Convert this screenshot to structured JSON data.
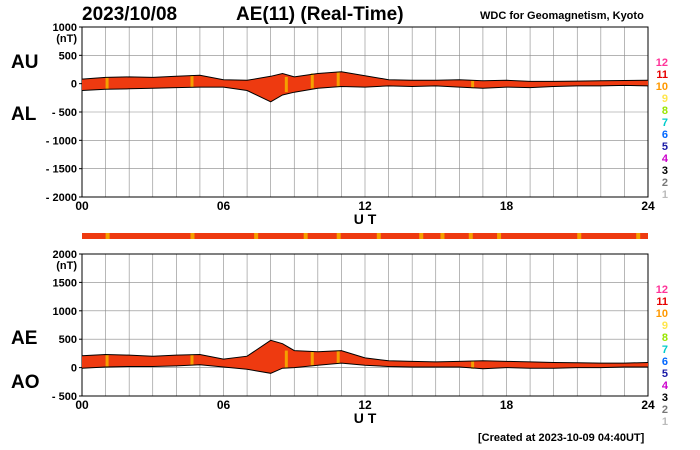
{
  "header": {
    "date": "2023/10/08",
    "title": "AE(11) (Real-Time)",
    "source": "WDC for Geomagnetism, Kyoto"
  },
  "footer": {
    "created": "[Created at 2023-10-09 04:40UT]"
  },
  "legend": {
    "items": [
      {
        "label": "12",
        "color": "#ff3399"
      },
      {
        "label": "11",
        "color": "#e60000"
      },
      {
        "label": "10",
        "color": "#ff9900"
      },
      {
        "label": "9",
        "color": "#ffe64d"
      },
      {
        "label": "8",
        "color": "#99e600"
      },
      {
        "label": "7",
        "color": "#00cccc"
      },
      {
        "label": "6",
        "color": "#0066ff"
      },
      {
        "label": "5",
        "color": "#1a1aa6"
      },
      {
        "label": "4",
        "color": "#cc00cc"
      },
      {
        "label": "3",
        "color": "#000000"
      },
      {
        "label": "2",
        "color": "#777777"
      },
      {
        "label": "1",
        "color": "#bbbbbb"
      }
    ]
  },
  "colors": {
    "fill_main": "#ee3a10",
    "fill_alt": "#f5a000",
    "outline": "#000000",
    "grid": "#888888"
  },
  "chart_data": [
    {
      "type": "area",
      "panel": "AU/AL",
      "series_labels": [
        "AU",
        "AL"
      ],
      "x": [
        0,
        1,
        2,
        3,
        4,
        5,
        6,
        7,
        8,
        8.5,
        9,
        10,
        11,
        12,
        13,
        14,
        15,
        16,
        17,
        18,
        19,
        20,
        21,
        22,
        23,
        24
      ],
      "series": [
        {
          "name": "AU",
          "values": [
            80,
            110,
            120,
            110,
            130,
            150,
            70,
            60,
            130,
            180,
            120,
            180,
            210,
            140,
            70,
            60,
            60,
            70,
            50,
            60,
            40,
            40,
            45,
            50,
            55,
            60
          ]
        },
        {
          "name": "AL",
          "values": [
            -120,
            -100,
            -90,
            -80,
            -70,
            -60,
            -60,
            -120,
            -320,
            -200,
            -150,
            -80,
            -50,
            -60,
            -40,
            -50,
            -40,
            -60,
            -80,
            -60,
            -70,
            -50,
            -40,
            -40,
            -30,
            -40
          ]
        }
      ],
      "xlabel": "U T",
      "xticks": [
        "00",
        "06",
        "12",
        "18",
        "24"
      ],
      "ylabel": "(nT)",
      "yticks": [
        "1000",
        "500",
        "0",
        "- 500",
        "- 1000",
        "- 1500",
        "- 2000"
      ],
      "xlim": [
        0,
        24
      ],
      "ylim": [
        -2000,
        1000
      ],
      "grid": true
    },
    {
      "type": "area",
      "panel": "AE/AO",
      "series_labels": [
        "AE",
        "AO"
      ],
      "x": [
        0,
        1,
        2,
        3,
        4,
        5,
        6,
        7,
        8,
        8.5,
        9,
        10,
        11,
        12,
        13,
        14,
        15,
        16,
        17,
        18,
        19,
        20,
        21,
        22,
        23,
        24
      ],
      "series": [
        {
          "name": "AE",
          "values": [
            210,
            230,
            220,
            200,
            220,
            230,
            150,
            200,
            480,
            420,
            300,
            280,
            300,
            170,
            120,
            110,
            100,
            110,
            120,
            110,
            100,
            90,
            85,
            80,
            80,
            90
          ]
        },
        {
          "name": "AO",
          "values": [
            -10,
            10,
            20,
            20,
            30,
            50,
            10,
            -30,
            -100,
            -10,
            0,
            40,
            80,
            40,
            20,
            10,
            10,
            10,
            -20,
            0,
            -10,
            -10,
            0,
            0,
            10,
            10
          ]
        }
      ],
      "xlabel": "U T",
      "xticks": [
        "00",
        "06",
        "12",
        "18",
        "24"
      ],
      "ylabel": "(nT)",
      "yticks": [
        "2000",
        "1500",
        "1000",
        "500",
        "0",
        "- 500"
      ],
      "xlim": [
        0,
        24
      ],
      "ylim": [
        -500,
        2000
      ],
      "grid": true
    }
  ]
}
